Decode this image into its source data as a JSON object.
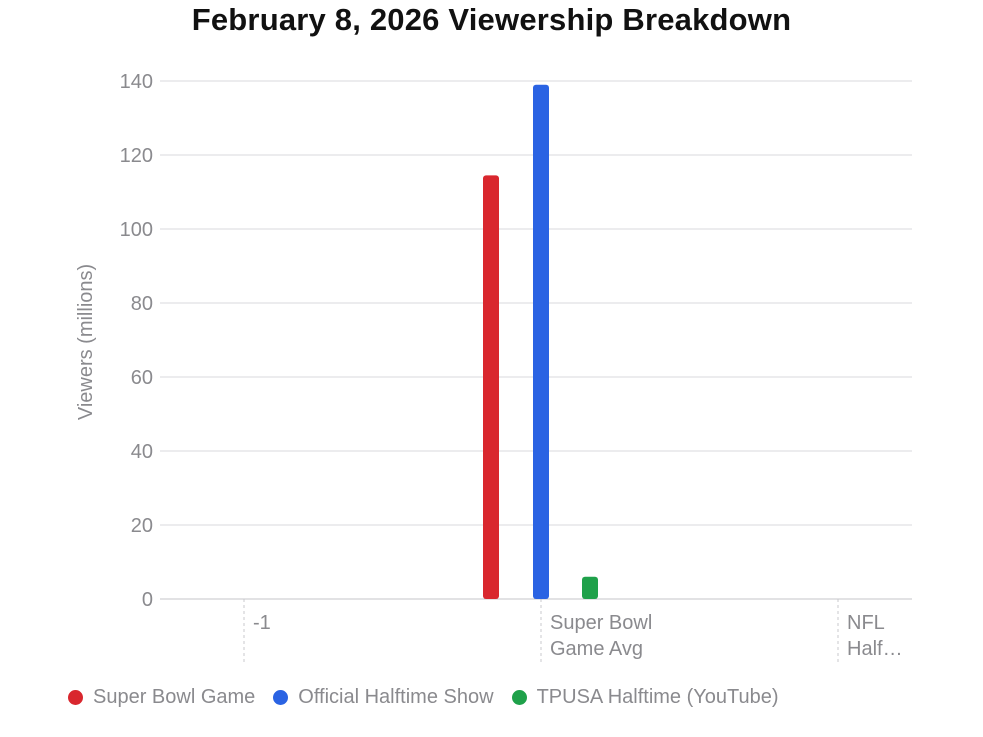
{
  "chart_data": {
    "type": "bar",
    "title": "February 8, 2026 Viewership Breakdown",
    "xlabel": "",
    "ylabel": "Viewers (millions)",
    "ylim": [
      0,
      140
    ],
    "yticks": [
      0,
      20,
      40,
      60,
      80,
      100,
      120,
      140
    ],
    "grid": true,
    "legend_position": "bottom",
    "x_ticks": [
      {
        "label_lines": [
          "-1"
        ]
      },
      {
        "label_lines": [
          "Super Bowl",
          "Game Avg"
        ]
      },
      {
        "label_lines": [
          "NFL",
          "Half…"
        ]
      }
    ],
    "series": [
      {
        "name": "Super Bowl Game",
        "color": "#d9272e",
        "values": [
          114.5
        ]
      },
      {
        "name": "Official Halftime Show",
        "color": "#2a63e3",
        "values": [
          139
        ]
      },
      {
        "name": "TPUSA Halftime (YouTube)",
        "color": "#1fa14a",
        "values": [
          6
        ]
      }
    ]
  }
}
